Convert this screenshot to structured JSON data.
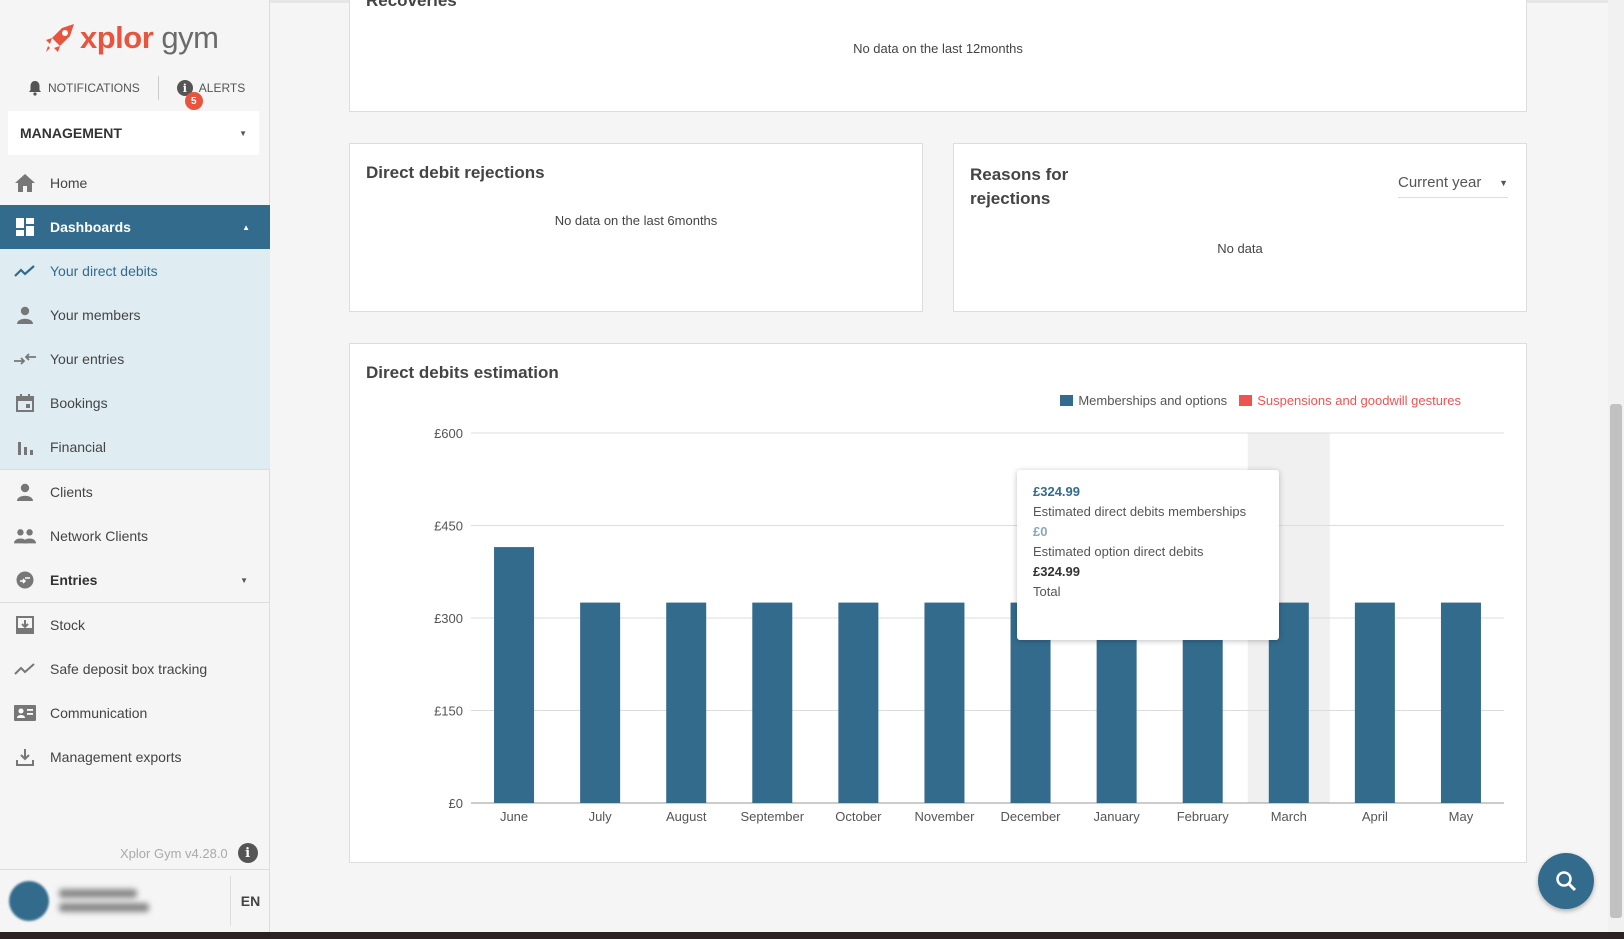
{
  "brand": {
    "logo_x": "xplor",
    "logo_g": "gym"
  },
  "top_links": {
    "notifications": "NOTIFICATIONS",
    "alerts": "ALERTS",
    "alerts_count": "5"
  },
  "management": {
    "label": "MANAGEMENT"
  },
  "nav": {
    "home": "Home",
    "dashboards": "Dashboards",
    "your_direct_debits": "Your direct debits",
    "your_members": "Your members",
    "your_entries": "Your entries",
    "bookings": "Bookings",
    "financial": "Financial",
    "clients": "Clients",
    "network_clients": "Network Clients",
    "entries": "Entries",
    "stock": "Stock",
    "safe_deposit": "Safe deposit box tracking",
    "communication": "Communication",
    "management_exports": "Management exports"
  },
  "version": "Xplor Gym v4.28.0",
  "language": "EN",
  "recoveries": {
    "title": "Recoveries",
    "nodata": "No data on the last 12months"
  },
  "rejections": {
    "title": "Direct debit rejections",
    "nodata": "No data on the last 6months"
  },
  "reasons": {
    "title_line1": "Reasons for",
    "title_line2": "rejections",
    "period": "Current year",
    "nodata": "No data"
  },
  "estimation": {
    "title": "Direct debits estimation"
  },
  "colors": {
    "primary": "#336b8d",
    "accent": "#e8553e",
    "suspensions": "#ef5350"
  },
  "chart_data": {
    "type": "bar",
    "categories": [
      "June",
      "July",
      "August",
      "September",
      "October",
      "November",
      "December",
      "January",
      "February",
      "March",
      "April",
      "May"
    ],
    "series": [
      {
        "name": "Memberships and options",
        "color": "#336b8d",
        "values": [
          414.98,
          324.99,
          324.99,
          324.99,
          324.99,
          324.99,
          324.99,
          324.99,
          324.99,
          324.99,
          324.99,
          324.99
        ]
      },
      {
        "name": "Suspensions and goodwill gestures",
        "color": "#ef5350",
        "values": [
          0,
          0,
          0,
          0,
          0,
          0,
          0,
          0,
          0,
          0,
          0,
          0
        ]
      }
    ],
    "ylim": [
      0,
      600
    ],
    "yticks": [
      "£0",
      "£150",
      "£300",
      "£450",
      "£600"
    ],
    "ytick_values": [
      0,
      150,
      300,
      450,
      600
    ],
    "highlight_index": 9,
    "tooltip": {
      "value1": "£324.99",
      "label1": "Estimated direct debits memberships",
      "value2": "£0",
      "label2": "Estimated option direct debits",
      "value3": "£324.99",
      "label3": "Total"
    }
  }
}
